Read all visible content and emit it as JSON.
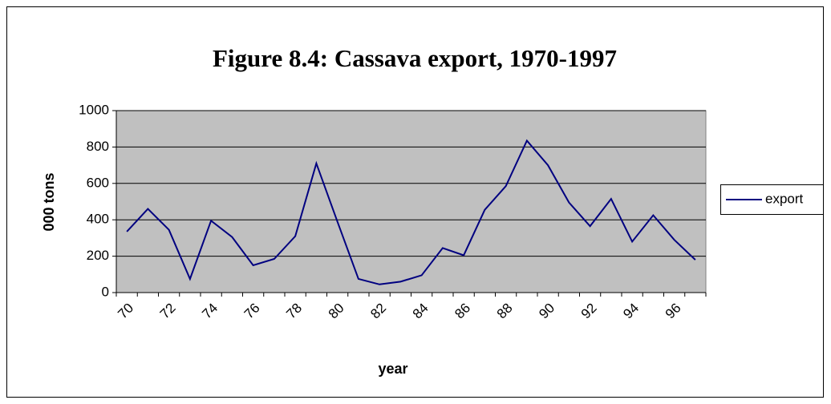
{
  "chart_data": {
    "type": "line",
    "title": "Figure 8.4:  Cassava export, 1970-1997",
    "x_label": "year",
    "y_label": "000 tons",
    "categories": [
      "70",
      null,
      "72",
      null,
      "74",
      null,
      "76",
      null,
      "78",
      null,
      "80",
      null,
      "82",
      null,
      "84",
      null,
      "86",
      null,
      "88",
      null,
      "90",
      null,
      "92",
      null,
      "94",
      null,
      "96",
      null
    ],
    "series": [
      {
        "name": "export",
        "color": "#000080",
        "values": [
          335,
          460,
          345,
          75,
          395,
          305,
          150,
          185,
          310,
          710,
          390,
          75,
          45,
          60,
          95,
          245,
          205,
          455,
          585,
          835,
          700,
          495,
          365,
          515,
          280,
          425,
          290,
          180
        ]
      }
    ],
    "ylim": [
      0,
      1000
    ],
    "yticks": [
      0,
      200,
      400,
      600,
      800,
      1000
    ],
    "grid": true,
    "legend": "right",
    "plot_background": "#c0c0c0"
  }
}
